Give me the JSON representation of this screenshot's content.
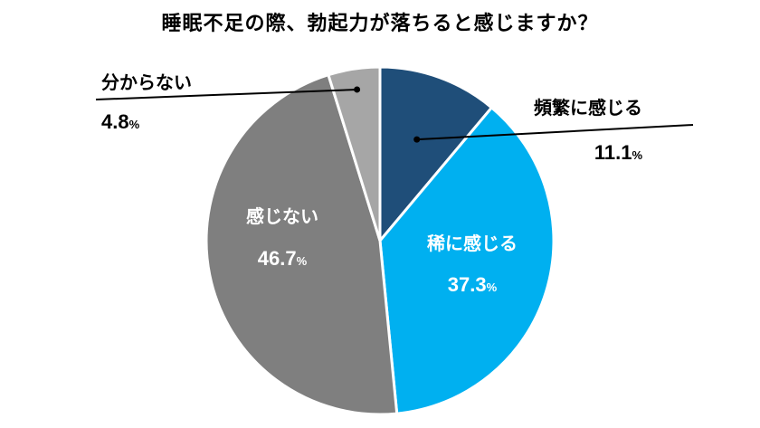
{
  "chart_data": {
    "type": "pie",
    "title": "睡眠不足の際、勃起力が落ちると感じますか？",
    "slices": [
      {
        "label": "頻繁に感じる",
        "value": 11.1,
        "value_text": "11.1",
        "unit": "%",
        "color": "#1f4e79"
      },
      {
        "label": "稀に感じる",
        "value": 37.3,
        "value_text": "37.3",
        "unit": "%",
        "color": "#00b0f0"
      },
      {
        "label": "感じない",
        "value": 46.7,
        "value_text": "46.7",
        "unit": "%",
        "color": "#7f7f7f"
      },
      {
        "label": "分からない",
        "value": 4.8,
        "value_text": "4.8",
        "unit": "%",
        "color": "#a6a6a6"
      }
    ],
    "start_angle_deg": 0,
    "direction": "clockwise",
    "label_color_outside": "#000000",
    "label_color_inside": "#ffffff",
    "legend": "none"
  }
}
